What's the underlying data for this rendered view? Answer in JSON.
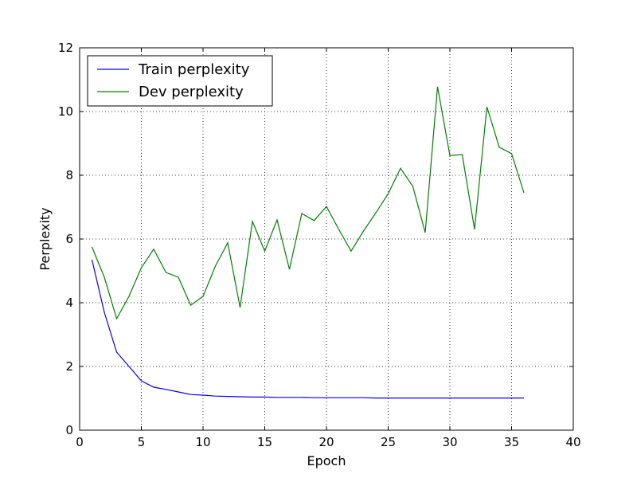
{
  "chart_data": {
    "type": "line",
    "xlabel": "Epoch",
    "ylabel": "Perplexity",
    "xlim": [
      0,
      40
    ],
    "ylim": [
      0,
      12
    ],
    "xticks": [
      "0",
      "5",
      "10",
      "15",
      "20",
      "25",
      "30",
      "35",
      "40"
    ],
    "yticks": [
      "0",
      "2",
      "4",
      "6",
      "8",
      "10",
      "12"
    ],
    "grid": true,
    "legend_position": "upper-left",
    "x": [
      1,
      2,
      3,
      4,
      5,
      6,
      7,
      8,
      9,
      10,
      11,
      12,
      13,
      14,
      15,
      16,
      17,
      18,
      19,
      20,
      21,
      22,
      23,
      24,
      25,
      26,
      27,
      28,
      29,
      30,
      31,
      32,
      33,
      34,
      35,
      36
    ],
    "series": [
      {
        "name": "Train perplexity",
        "color": "#0000ff",
        "values": [
          5.35,
          3.7,
          2.45,
          2.0,
          1.55,
          1.35,
          1.28,
          1.2,
          1.12,
          1.1,
          1.07,
          1.06,
          1.05,
          1.04,
          1.04,
          1.03,
          1.03,
          1.03,
          1.02,
          1.02,
          1.02,
          1.02,
          1.02,
          1.01,
          1.01,
          1.01,
          1.01,
          1.01,
          1.01,
          1.01,
          1.01,
          1.01,
          1.01,
          1.01,
          1.01,
          1.01
        ]
      },
      {
        "name": "Dev perplexity",
        "color": "#008000",
        "values": [
          5.75,
          4.8,
          3.5,
          4.2,
          5.1,
          5.68,
          4.95,
          4.8,
          3.92,
          4.2,
          5.15,
          5.88,
          3.85,
          6.55,
          5.62,
          6.6,
          5.05,
          6.8,
          6.58,
          7.02,
          6.3,
          5.62,
          6.25,
          6.82,
          7.42,
          8.22,
          7.65,
          6.2,
          10.78,
          8.62,
          8.65,
          6.3,
          10.15,
          8.88,
          8.68,
          7.45
        ]
      }
    ]
  }
}
